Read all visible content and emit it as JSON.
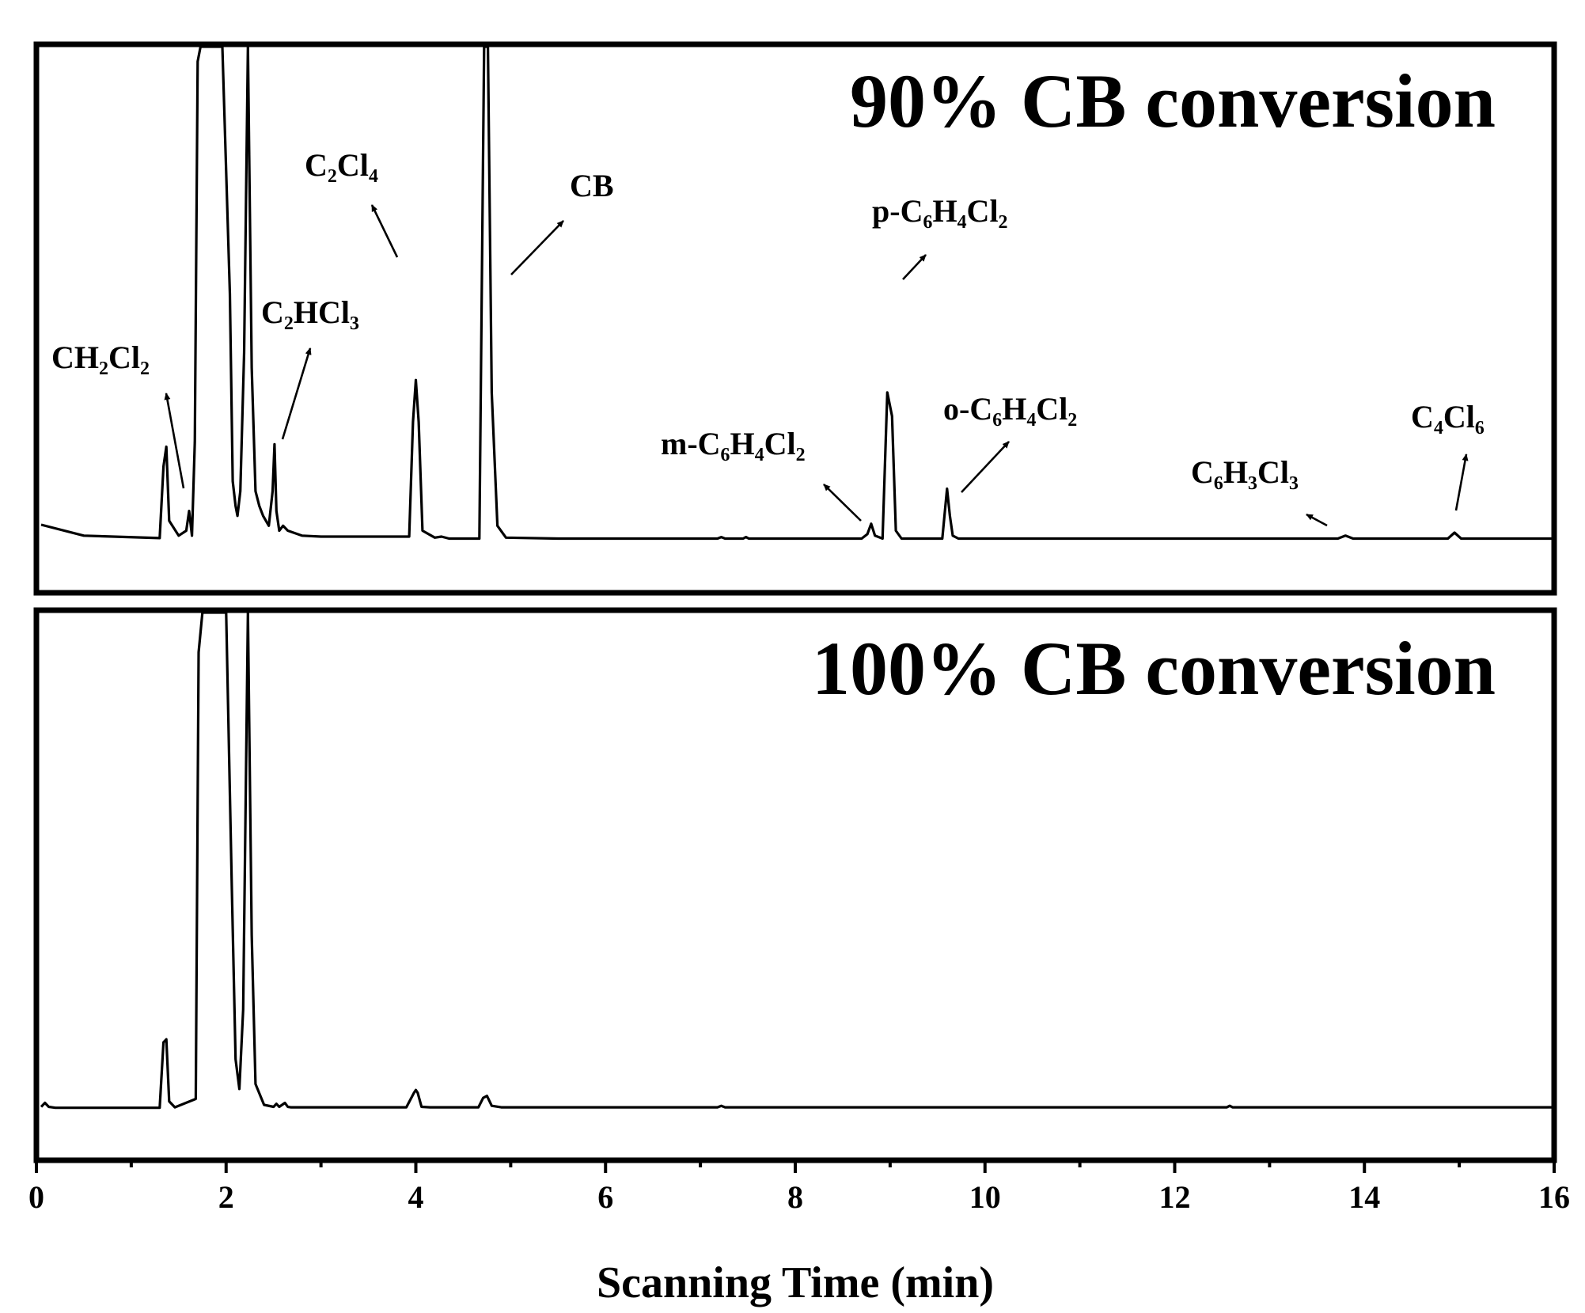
{
  "chart_data": {
    "type": "line",
    "xlabel": "Scanning Time (min)",
    "ylabel": "",
    "xlim": [
      0,
      16
    ],
    "xticks": [
      "0",
      "2",
      "4",
      "6",
      "8",
      "10",
      "12",
      "14",
      "16"
    ],
    "grid": false,
    "legend": "none",
    "panels": [
      {
        "title": "90% CB conversion",
        "series": [
          {
            "x": [
              0.05,
              0.5,
              1.3,
              1.34,
              1.37,
              1.4,
              1.5,
              1.58,
              1.61,
              1.64,
              1.67,
              1.7,
              1.73,
              1.76,
              1.8,
              1.88,
              1.96,
              2.04,
              2.07,
              2.1,
              2.12,
              2.15,
              2.19,
              2.23,
              2.27,
              2.31,
              2.35,
              2.39,
              2.45,
              2.49,
              2.51,
              2.53,
              2.56,
              2.6,
              2.65,
              2.8,
              3.0,
              3.5,
              3.93,
              3.97,
              4.0,
              4.03,
              4.07,
              4.2,
              4.27,
              4.35,
              4.67,
              4.72,
              4.76,
              4.8,
              4.86,
              4.95,
              5.5,
              7.18,
              7.22,
              7.26,
              7.45,
              7.48,
              7.51,
              8.7,
              8.76,
              8.8,
              8.84,
              8.92,
              8.97,
              9.02,
              9.06,
              9.12,
              9.2,
              9.55,
              9.6,
              9.63,
              9.66,
              9.72,
              9.8,
              13.72,
              13.8,
              13.88,
              14.88,
              14.95,
              15.02,
              16.0
            ],
            "y": [
              0.032,
              0.01,
              0.005,
              0.15,
              0.19,
              0.04,
              0.01,
              0.02,
              0.06,
              0.01,
              0.2,
              0.97,
              1.0,
              1.0,
              1.0,
              1.0,
              1.0,
              0.5,
              0.12,
              0.07,
              0.05,
              0.1,
              0.38,
              1.0,
              0.35,
              0.1,
              0.07,
              0.05,
              0.03,
              0.1,
              0.195,
              0.06,
              0.02,
              0.03,
              0.02,
              0.01,
              0.008,
              0.008,
              0.008,
              0.24,
              0.325,
              0.24,
              0.02,
              0.006,
              0.008,
              0.004,
              0.004,
              1.0,
              1.0,
              0.3,
              0.03,
              0.006,
              0.004,
              0.004,
              0.007,
              0.004,
              0.004,
              0.007,
              0.004,
              0.004,
              0.013,
              0.034,
              0.01,
              0.004,
              0.3,
              0.252,
              0.02,
              0.004,
              0.004,
              0.004,
              0.105,
              0.05,
              0.01,
              0.004,
              0.004,
              0.004,
              0.01,
              0.004,
              0.004,
              0.016,
              0.004,
              0.004
            ]
          }
        ],
        "annotations": [
          "CH₂Cl₂",
          "C₂HCl₃",
          "C₂Cl₄",
          "CB",
          "p-C₆H₄Cl₂",
          "m-C₆H₄Cl₂",
          "o-C₆H₄Cl₂",
          "C₆H₃Cl₃",
          "C₄Cl₆"
        ]
      },
      {
        "title": "100% CB conversion",
        "series": [
          {
            "x": [
              0.05,
              0.09,
              0.13,
              0.2,
              1.3,
              1.34,
              1.37,
              1.4,
              1.46,
              1.68,
              1.71,
              1.75,
              1.8,
              1.9,
              2.0,
              2.06,
              2.1,
              2.14,
              2.18,
              2.23,
              2.27,
              2.31,
              2.4,
              2.5,
              2.53,
              2.56,
              2.62,
              2.65,
              2.68,
              2.8,
              3.9,
              3.98,
              4.0,
              4.02,
              4.06,
              4.15,
              4.66,
              4.71,
              4.75,
              4.8,
              4.9,
              7.18,
              7.22,
              7.26,
              12.55,
              12.58,
              12.61,
              16.0
            ],
            "y": [
              0.004,
              0.012,
              0.004,
              0.002,
              0.002,
              0.134,
              0.14,
              0.015,
              0.003,
              0.02,
              0.92,
              1.0,
              1.0,
              1.0,
              1.0,
              0.45,
              0.1,
              0.04,
              0.2,
              1.0,
              0.35,
              0.05,
              0.008,
              0.004,
              0.01,
              0.004,
              0.012,
              0.004,
              0.003,
              0.003,
              0.003,
              0.032,
              0.038,
              0.032,
              0.004,
              0.003,
              0.003,
              0.022,
              0.026,
              0.006,
              0.003,
              0.003,
              0.006,
              0.003,
              0.003,
              0.006,
              0.003,
              0.003
            ]
          }
        ]
      }
    ]
  }
}
